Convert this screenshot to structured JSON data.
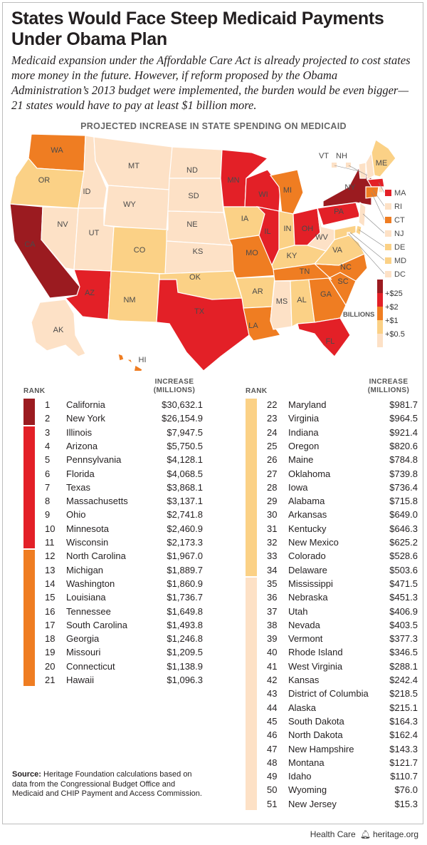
{
  "title": "States Would Face Steep Medicaid Payments Under Obama Plan",
  "subtitle": "Medicaid expansion under the Affordable Care Act is already projected to cost states more money in the future. However, if reform proposed by the Obama Administration’s 2013 budget were implemented, the burden would be even bigger—21 states would have to pay at least $1 billion more.",
  "map_title": "PROJECTED INCREASE IN STATE SPENDING ON MEDICAID",
  "legend": {
    "title": "BILLIONS",
    "items": [
      {
        "label": "+$25",
        "color": "#9b1b20"
      },
      {
        "label": "+$2",
        "color": "#e32027"
      },
      {
        "label": "+$1",
        "color": "#ef7d22"
      },
      {
        "label": "+$0.5",
        "color": "#fbd186"
      },
      {
        "label": "",
        "color": "#fde1c6"
      }
    ]
  },
  "map_labels": [
    "WA",
    "OR",
    "CA",
    "NV",
    "ID",
    "MT",
    "WY",
    "UT",
    "AZ",
    "NM",
    "CO",
    "ND",
    "SD",
    "NE",
    "KS",
    "OK",
    "TX",
    "MN",
    "IA",
    "MO",
    "AR",
    "LA",
    "WI",
    "IL",
    "MI",
    "IN",
    "OH",
    "KY",
    "TN",
    "MS",
    "AL",
    "GA",
    "FL",
    "SC",
    "NC",
    "VA",
    "WV",
    "PA",
    "NY",
    "VT",
    "NH",
    "ME",
    "MA",
    "RI",
    "CT",
    "NJ",
    "DE",
    "MD",
    "DC",
    "AK",
    "HI"
  ],
  "table_headers": {
    "rank": "RANK",
    "increase_line1": "INCREASE",
    "increase_line2": "(MILLIONS)"
  },
  "chart_data": {
    "type": "table",
    "title": "PROJECTED INCREASE IN STATE SPENDING ON MEDICAID",
    "columns": [
      "RANK",
      "",
      "INCREASE (MILLIONS)"
    ],
    "rows": [
      {
        "rank": "1",
        "state": "California",
        "value": "$30,632.1",
        "tier": 0
      },
      {
        "rank": "2",
        "state": "New York",
        "value": "$26,154.9",
        "tier": 0
      },
      {
        "rank": "3",
        "state": "Illinois",
        "value": "$7,947.5",
        "tier": 1
      },
      {
        "rank": "4",
        "state": "Arizona",
        "value": "$5,750.5",
        "tier": 1
      },
      {
        "rank": "5",
        "state": "Pennsylvania",
        "value": "$4,128.1",
        "tier": 1
      },
      {
        "rank": "6",
        "state": "Florida",
        "value": "$4,068.5",
        "tier": 1
      },
      {
        "rank": "7",
        "state": "Texas",
        "value": "$3,868.1",
        "tier": 1
      },
      {
        "rank": "8",
        "state": "Massachusetts",
        "value": "$3,137.1",
        "tier": 1
      },
      {
        "rank": "9",
        "state": "Ohio",
        "value": "$2,741.8",
        "tier": 1
      },
      {
        "rank": "10",
        "state": "Minnesota",
        "value": "$2,460.9",
        "tier": 1
      },
      {
        "rank": "11",
        "state": "Wisconsin",
        "value": "$2,173.3",
        "tier": 1
      },
      {
        "rank": "12",
        "state": "North Carolina",
        "value": "$1,967.0",
        "tier": 2
      },
      {
        "rank": "13",
        "state": "Michigan",
        "value": "$1,889.7",
        "tier": 2
      },
      {
        "rank": "14",
        "state": "Washington",
        "value": "$1,860.9",
        "tier": 2
      },
      {
        "rank": "15",
        "state": "Louisiana",
        "value": "$1,736.7",
        "tier": 2
      },
      {
        "rank": "16",
        "state": "Tennessee",
        "value": "$1,649.8",
        "tier": 2
      },
      {
        "rank": "17",
        "state": "South Carolina",
        "value": "$1,493.8",
        "tier": 2
      },
      {
        "rank": "18",
        "state": "Georgia",
        "value": "$1,246.8",
        "tier": 2
      },
      {
        "rank": "19",
        "state": "Missouri",
        "value": "$1,209.5",
        "tier": 2
      },
      {
        "rank": "20",
        "state": "Connecticut",
        "value": "$1,138.9",
        "tier": 2
      },
      {
        "rank": "21",
        "state": "Hawaii",
        "value": "$1,096.3",
        "tier": 2
      },
      {
        "rank": "22",
        "state": "Maryland",
        "value": "$981.7",
        "tier": 3
      },
      {
        "rank": "23",
        "state": "Virginia",
        "value": "$964.5",
        "tier": 3
      },
      {
        "rank": "24",
        "state": "Indiana",
        "value": "$921.4",
        "tier": 3
      },
      {
        "rank": "25",
        "state": "Oregon",
        "value": "$820.6",
        "tier": 3
      },
      {
        "rank": "26",
        "state": "Maine",
        "value": "$784.8",
        "tier": 3
      },
      {
        "rank": "27",
        "state": "Oklahoma",
        "value": "$739.8",
        "tier": 3
      },
      {
        "rank": "28",
        "state": "Iowa",
        "value": "$736.4",
        "tier": 3
      },
      {
        "rank": "29",
        "state": "Alabama",
        "value": "$715.8",
        "tier": 3
      },
      {
        "rank": "30",
        "state": "Arkansas",
        "value": "$649.0",
        "tier": 3
      },
      {
        "rank": "31",
        "state": "Kentucky",
        "value": "$646.3",
        "tier": 3
      },
      {
        "rank": "32",
        "state": "New Mexico",
        "value": "$625.2",
        "tier": 3
      },
      {
        "rank": "33",
        "state": "Colorado",
        "value": "$528.6",
        "tier": 3
      },
      {
        "rank": "34",
        "state": "Delaware",
        "value": "$503.6",
        "tier": 3
      },
      {
        "rank": "35",
        "state": "Mississippi",
        "value": "$471.5",
        "tier": 4
      },
      {
        "rank": "36",
        "state": "Nebraska",
        "value": "$451.3",
        "tier": 4
      },
      {
        "rank": "37",
        "state": "Utah",
        "value": "$406.9",
        "tier": 4
      },
      {
        "rank": "38",
        "state": "Nevada",
        "value": "$403.5",
        "tier": 4
      },
      {
        "rank": "39",
        "state": "Vermont",
        "value": "$377.3",
        "tier": 4
      },
      {
        "rank": "40",
        "state": "Rhode Island",
        "value": "$346.5",
        "tier": 4
      },
      {
        "rank": "41",
        "state": "West Virginia",
        "value": "$288.1",
        "tier": 4
      },
      {
        "rank": "42",
        "state": "Kansas",
        "value": "$242.4",
        "tier": 4
      },
      {
        "rank": "43",
        "state": "District of Columbia",
        "value": "$218.5",
        "tier": 4
      },
      {
        "rank": "44",
        "state": "Alaska",
        "value": "$215.1",
        "tier": 4
      },
      {
        "rank": "45",
        "state": "South Dakota",
        "value": "$164.3",
        "tier": 4
      },
      {
        "rank": "46",
        "state": "North Dakota",
        "value": "$162.4",
        "tier": 4
      },
      {
        "rank": "47",
        "state": "New Hampshire",
        "value": "$143.3",
        "tier": 4
      },
      {
        "rank": "48",
        "state": "Montana",
        "value": "$121.7",
        "tier": 4
      },
      {
        "rank": "49",
        "state": "Idaho",
        "value": "$110.7",
        "tier": 4
      },
      {
        "rank": "50",
        "state": "Wyoming",
        "value": "$76.0",
        "tier": 4
      },
      {
        "rank": "51",
        "state": "New Jersey",
        "value": "$15.3",
        "tier": 4
      }
    ]
  },
  "source": {
    "label": "Source:",
    "text": " Heritage Foundation calculations based on data from the Congressional Budget Office and Medicaid and CHIP Payment and Access Commission."
  },
  "footer": {
    "category": "Health Care",
    "site": "heritage.org",
    "icon": "liberty-bell-icon"
  }
}
